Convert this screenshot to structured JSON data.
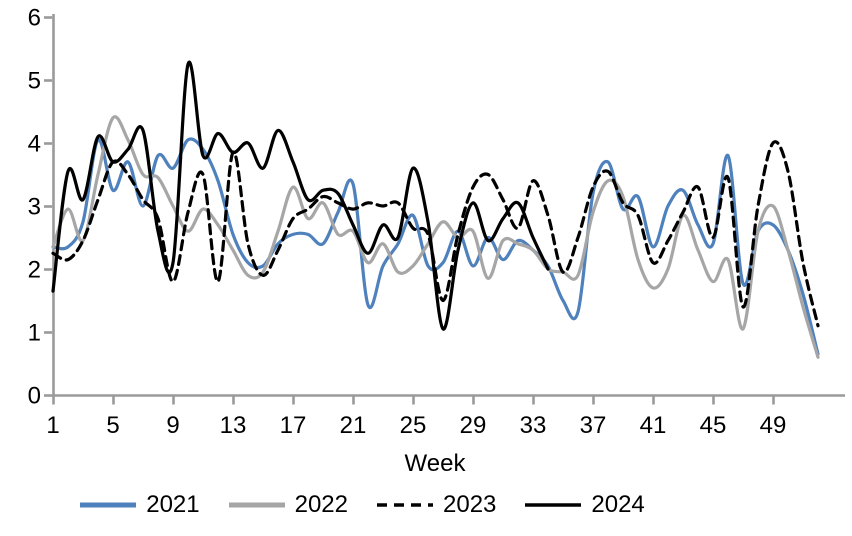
{
  "chart_data": {
    "type": "line",
    "title": "",
    "xlabel": "Week",
    "ylabel": "",
    "grid": false,
    "legend_position": "bottom",
    "axis_color": "#9a9a9a",
    "text_color": "#000000",
    "xlim": [
      1,
      53
    ],
    "ylim": [
      0,
      6
    ],
    "x_ticks": [
      1,
      5,
      9,
      13,
      17,
      21,
      25,
      29,
      33,
      37,
      41,
      45,
      49
    ],
    "y_ticks": [
      0,
      1,
      2,
      3,
      4,
      5,
      6
    ],
    "weeks": [
      1,
      2,
      3,
      4,
      5,
      6,
      7,
      8,
      9,
      10,
      11,
      12,
      13,
      14,
      15,
      16,
      17,
      18,
      19,
      20,
      21,
      22,
      23,
      24,
      25,
      26,
      27,
      28,
      29,
      30,
      31,
      32,
      33,
      34,
      35,
      36,
      37,
      38,
      39,
      40,
      41,
      42,
      43,
      44,
      45,
      46,
      47,
      48,
      49,
      50,
      51,
      52
    ],
    "series": [
      {
        "name": "2021",
        "color": "#4F81BD",
        "dash": "solid",
        "values": [
          2.35,
          2.35,
          2.75,
          4.05,
          3.25,
          3.7,
          3.0,
          3.8,
          3.6,
          4.05,
          3.9,
          3.4,
          2.55,
          2.1,
          2.05,
          2.4,
          2.55,
          2.55,
          2.4,
          2.9,
          3.35,
          1.43,
          2.05,
          2.4,
          2.85,
          2.05,
          2.1,
          2.6,
          2.05,
          2.5,
          2.15,
          2.45,
          2.3,
          2.05,
          1.5,
          1.32,
          3.2,
          3.7,
          2.95,
          3.15,
          2.35,
          3.0,
          3.25,
          2.7,
          2.4,
          3.8,
          1.77,
          2.6,
          2.7,
          2.3,
          1.6,
          0.65
        ]
      },
      {
        "name": "2022",
        "color": "#A6A6A6",
        "dash": "solid",
        "values": [
          2.35,
          2.95,
          2.45,
          3.5,
          4.4,
          4.05,
          3.5,
          3.45,
          3.0,
          2.6,
          2.95,
          2.7,
          2.3,
          1.9,
          1.95,
          2.6,
          3.3,
          2.8,
          3.05,
          2.55,
          2.6,
          2.1,
          2.4,
          1.95,
          2.05,
          2.4,
          2.75,
          2.5,
          2.6,
          1.85,
          2.45,
          2.4,
          2.3,
          2.0,
          1.95,
          1.9,
          2.9,
          3.4,
          3.15,
          2.15,
          1.7,
          2.0,
          2.85,
          2.3,
          1.8,
          2.15,
          1.05,
          2.6,
          3.0,
          2.3,
          1.4,
          0.6
        ]
      },
      {
        "name": "2023",
        "color": "#000000",
        "dash": "dashed",
        "values": [
          2.25,
          2.15,
          2.45,
          3.1,
          3.7,
          3.5,
          3.1,
          2.8,
          1.8,
          2.9,
          3.5,
          1.8,
          3.85,
          2.4,
          1.9,
          2.3,
          2.8,
          2.95,
          3.15,
          3.05,
          2.95,
          3.05,
          3.0,
          3.05,
          2.65,
          2.55,
          1.5,
          2.55,
          3.3,
          3.5,
          3.1,
          2.65,
          3.4,
          2.85,
          1.95,
          2.5,
          3.3,
          3.55,
          3.05,
          2.85,
          2.1,
          2.45,
          2.9,
          3.3,
          2.5,
          3.45,
          1.4,
          3.0,
          4.0,
          3.55,
          2.1,
          1.1
        ]
      },
      {
        "name": "2024",
        "color": "#000000",
        "dash": "solid",
        "values": [
          1.65,
          3.55,
          3.1,
          4.1,
          3.7,
          3.9,
          4.2,
          2.6,
          2.1,
          5.25,
          3.8,
          4.15,
          3.85,
          4.0,
          3.6,
          4.2,
          3.7,
          3.1,
          3.25,
          3.2,
          2.7,
          2.25,
          2.7,
          2.5,
          3.6,
          2.75,
          1.05,
          2.3,
          3.05,
          2.45,
          2.8,
          3.05,
          2.5,
          2.0
        ]
      }
    ]
  }
}
